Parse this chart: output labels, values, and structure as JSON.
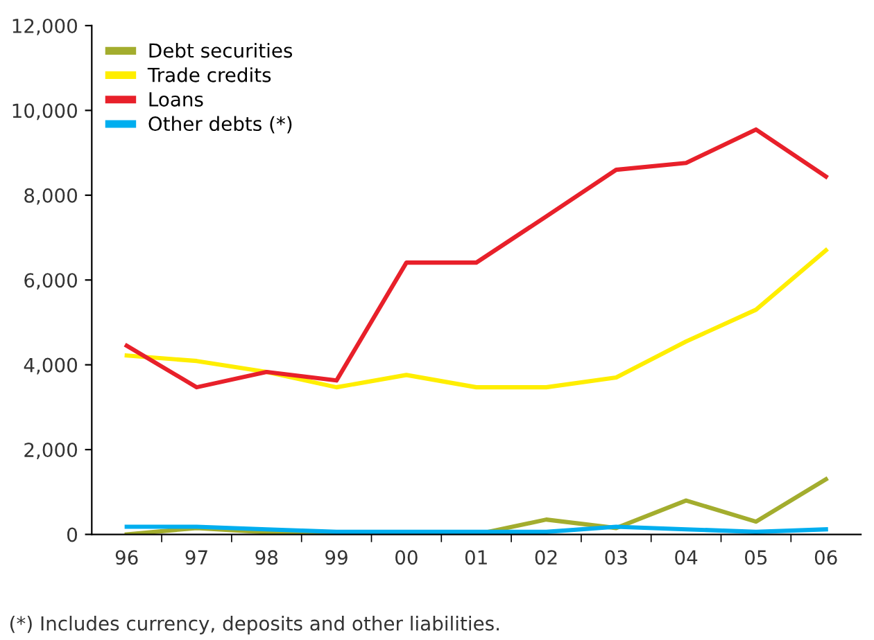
{
  "chart_data": {
    "type": "line",
    "categories": [
      "96",
      "97",
      "98",
      "99",
      "00",
      "01",
      "02",
      "03",
      "04",
      "05",
      "06"
    ],
    "series": [
      {
        "name": "Debt securities",
        "color": "#a3ad2e",
        "values": [
          0,
          150,
          50,
          0,
          0,
          0,
          350,
          150,
          800,
          300,
          1300
        ]
      },
      {
        "name": "Trade credits",
        "color": "#ffee00",
        "values": [
          4220,
          4090,
          3830,
          3470,
          3760,
          3470,
          3470,
          3700,
          4550,
          5300,
          6700
        ]
      },
      {
        "name": "Loans",
        "color": "#e8202a",
        "values": [
          4450,
          3470,
          3830,
          3630,
          6410,
          6410,
          7500,
          8600,
          8760,
          9550,
          8440
        ]
      },
      {
        "name": "Other debts (*)",
        "color": "#00aeef",
        "values": [
          180,
          180,
          120,
          60,
          60,
          60,
          60,
          180,
          120,
          60,
          120
        ]
      }
    ],
    "ylim": [
      0,
      12000
    ],
    "yticks": [
      {
        "value": 0,
        "label": "0"
      },
      {
        "value": 2000,
        "label": "2,000"
      },
      {
        "value": 4000,
        "label": "4,000"
      },
      {
        "value": 6000,
        "label": "6,000"
      },
      {
        "value": 8000,
        "label": "8,000"
      },
      {
        "value": 10000,
        "label": "10,000"
      },
      {
        "value": 12000,
        "label": "12,000"
      }
    ],
    "legend": "top left",
    "grid": false,
    "marker": "none",
    "line_style": "solid",
    "annotations": [
      "(*) Includes currency, deposits and other liabilities."
    ]
  }
}
